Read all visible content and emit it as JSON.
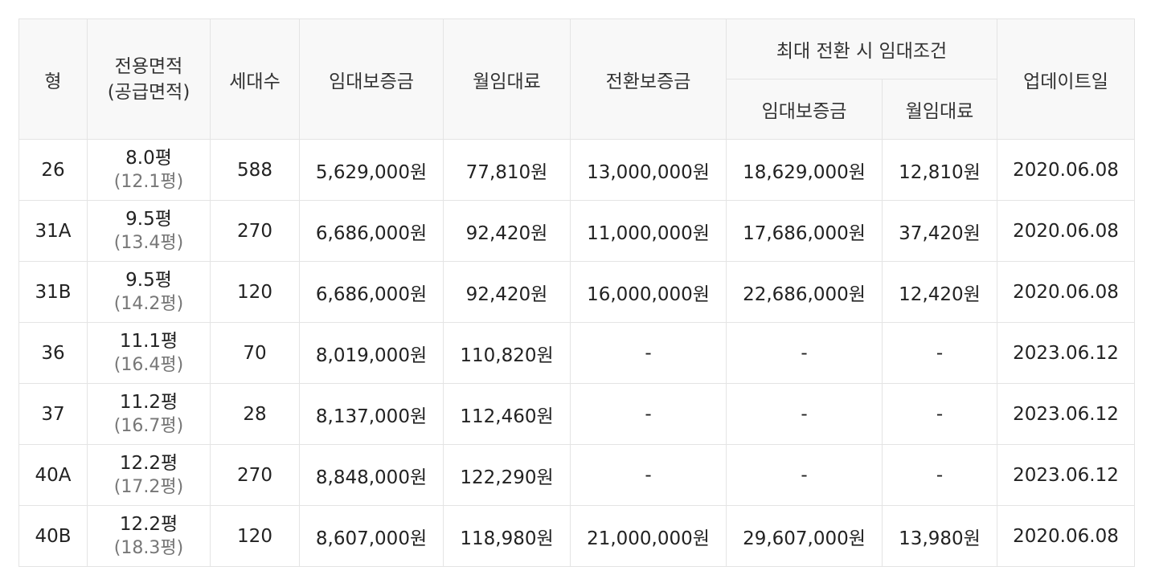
{
  "headers": {
    "type": "형",
    "area_line1": "전용면적",
    "area_line2": "(공급면적)",
    "households": "세대수",
    "deposit": "임대보증금",
    "monthly_rent": "월임대료",
    "conversion_deposit": "전환보증금",
    "max_conversion_group": "최대 전환 시 임대조건",
    "max_deposit": "임대보증금",
    "max_monthly_rent": "월임대료",
    "updated": "업데이트일"
  },
  "rows": [
    {
      "type": "26",
      "area": "8.0평",
      "supply": "(12.1평)",
      "households": "588",
      "deposit": "5,629,000원",
      "rent": "77,810원",
      "conv": "13,000,000원",
      "max_deposit": "18,629,000원",
      "max_rent": "12,810원",
      "updated": "2020.06.08"
    },
    {
      "type": "31A",
      "area": "9.5평",
      "supply": "(13.4평)",
      "households": "270",
      "deposit": "6,686,000원",
      "rent": "92,420원",
      "conv": "11,000,000원",
      "max_deposit": "17,686,000원",
      "max_rent": "37,420원",
      "updated": "2020.06.08"
    },
    {
      "type": "31B",
      "area": "9.5평",
      "supply": "(14.2평)",
      "households": "120",
      "deposit": "6,686,000원",
      "rent": "92,420원",
      "conv": "16,000,000원",
      "max_deposit": "22,686,000원",
      "max_rent": "12,420원",
      "updated": "2020.06.08"
    },
    {
      "type": "36",
      "area": "11.1평",
      "supply": "(16.4평)",
      "households": "70",
      "deposit": "8,019,000원",
      "rent": "110,820원",
      "conv": "-",
      "max_deposit": "-",
      "max_rent": "-",
      "updated": "2023.06.12"
    },
    {
      "type": "37",
      "area": "11.2평",
      "supply": "(16.7평)",
      "households": "28",
      "deposit": "8,137,000원",
      "rent": "112,460원",
      "conv": "-",
      "max_deposit": "-",
      "max_rent": "-",
      "updated": "2023.06.12"
    },
    {
      "type": "40A",
      "area": "12.2평",
      "supply": "(17.2평)",
      "households": "270",
      "deposit": "8,848,000원",
      "rent": "122,290원",
      "conv": "-",
      "max_deposit": "-",
      "max_rent": "-",
      "updated": "2023.06.12"
    },
    {
      "type": "40B",
      "area": "12.2평",
      "supply": "(18.3평)",
      "households": "120",
      "deposit": "8,607,000원",
      "rent": "118,980원",
      "conv": "21,000,000원",
      "max_deposit": "29,607,000원",
      "max_rent": "13,980원",
      "updated": "2020.06.08"
    }
  ]
}
